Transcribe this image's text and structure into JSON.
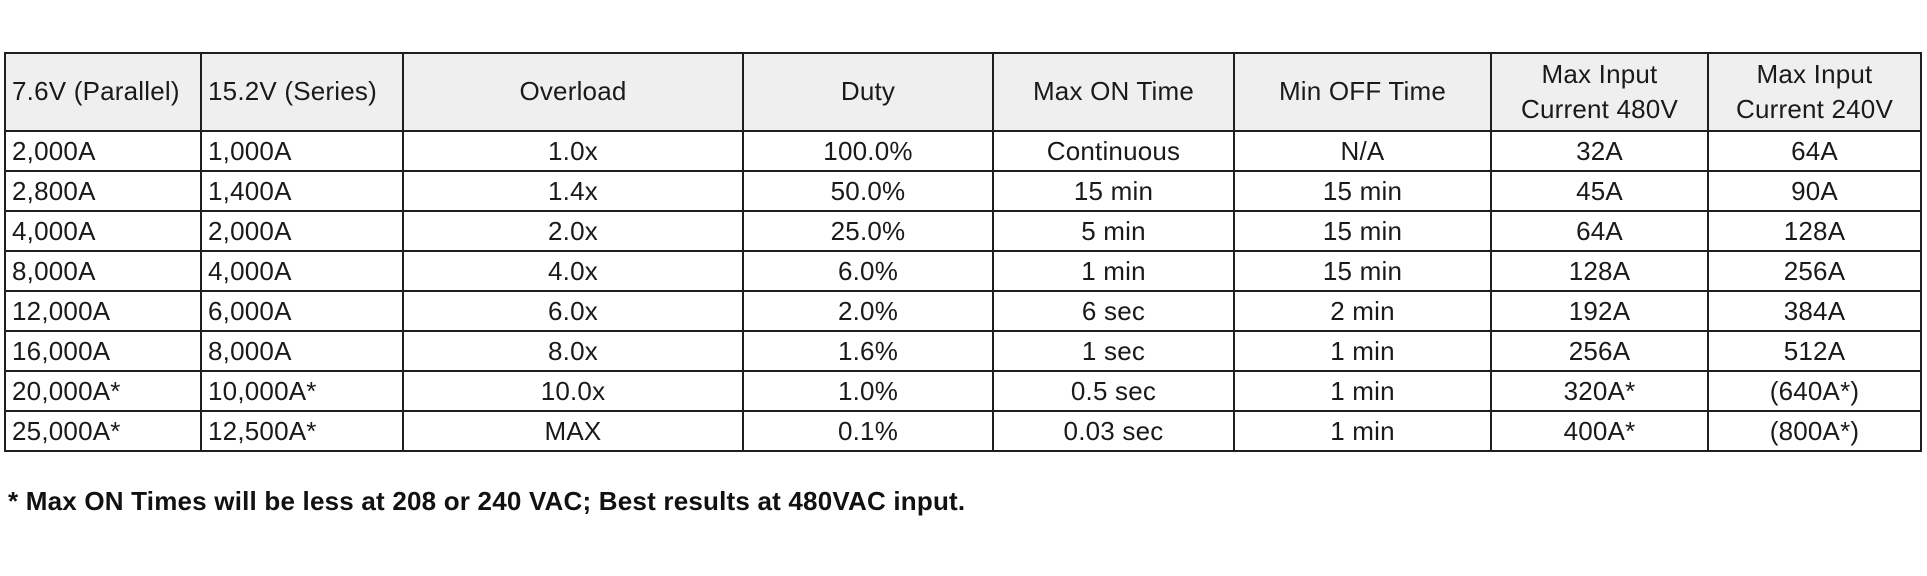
{
  "table": {
    "name": "overload-duty-cycle-spec-table",
    "columns": [
      {
        "label_lines": [
          "7.6V (Parallel)"
        ],
        "align": "left"
      },
      {
        "label_lines": [
          "15.2V (Series)"
        ],
        "align": "left"
      },
      {
        "label_lines": [
          "Overload"
        ],
        "align": "center"
      },
      {
        "label_lines": [
          "Duty"
        ],
        "align": "center"
      },
      {
        "label_lines": [
          "Max ON Time"
        ],
        "align": "center"
      },
      {
        "label_lines": [
          "Min OFF Time"
        ],
        "align": "center"
      },
      {
        "label_lines": [
          "Max Input",
          "Current 480V"
        ],
        "align": "center"
      },
      {
        "label_lines": [
          "Max Input",
          "Current 240V"
        ],
        "align": "center"
      }
    ],
    "rows": [
      [
        "2,000A",
        "1,000A",
        "1.0x",
        "100.0%",
        "Continuous",
        "N/A",
        "32A",
        "64A"
      ],
      [
        "2,800A",
        "1,400A",
        "1.4x",
        "50.0%",
        "15 min",
        "15 min",
        "45A",
        "90A"
      ],
      [
        "4,000A",
        "2,000A",
        "2.0x",
        "25.0%",
        "5 min",
        "15 min",
        "64A",
        "128A"
      ],
      [
        "8,000A",
        "4,000A",
        "4.0x",
        "6.0%",
        "1 min",
        "15 min",
        "128A",
        "256A"
      ],
      [
        "12,000A",
        "6,000A",
        "6.0x",
        "2.0%",
        "6 sec",
        "2 min",
        "192A",
        "384A"
      ],
      [
        "16,000A",
        "8,000A",
        "8.0x",
        "1.6%",
        "1 sec",
        "1 min",
        "256A",
        "512A"
      ],
      [
        "20,000A*",
        "10,000A*",
        "10.0x",
        "1.0%",
        "0.5 sec",
        "1 min",
        "320A*",
        "(640A*)"
      ],
      [
        "25,000A*",
        "12,500A*",
        "MAX",
        "0.1%",
        "0.03 sec",
        "1 min",
        "400A*",
        "(800A*)"
      ]
    ]
  },
  "footnote": "* Max ON Times will be less at 208 or 240 VAC; Best results at 480VAC input.",
  "colors": {
    "header_background": "#efefef",
    "border": "#1f1f1f",
    "text": "#1a1a1a",
    "page_background": "#ffffff"
  }
}
